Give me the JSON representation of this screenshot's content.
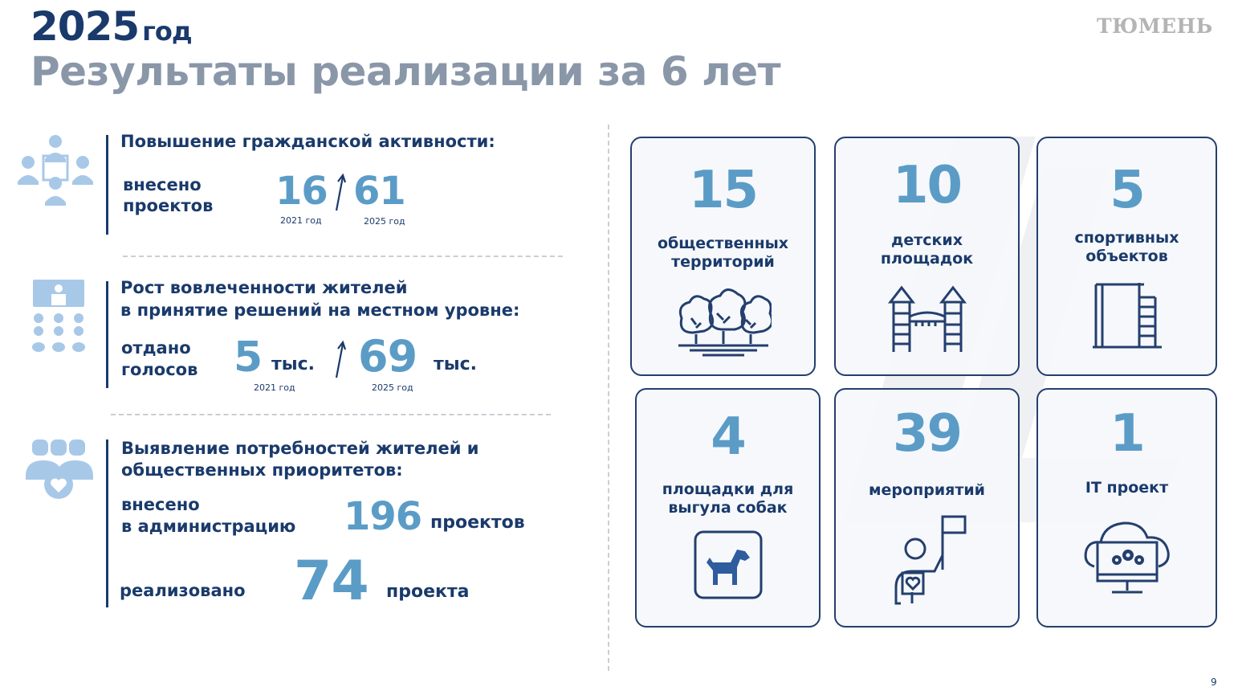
{
  "header": {
    "year": "2025",
    "year_suffix": "год",
    "title": "Результаты реализации за 6 лет",
    "brand": "ТЮМЕНЬ"
  },
  "section1": {
    "heading": "Повышение гражданской активности:",
    "label_line1": "внесено",
    "label_line2": "проектов",
    "value_2021": "16",
    "caption_2021": "2021 год",
    "value_2025": "61",
    "caption_2025": "2025 год",
    "icon": "people-meeting-icon"
  },
  "section2": {
    "heading_line1": "Рост вовлеченности  жителей",
    "heading_line2": "в принятие решений на местном уровне:",
    "label_line1": "отдано",
    "label_line2": "голосов",
    "value_2021": "5",
    "unit_2021": "тыс.",
    "caption_2021": "2021 год",
    "value_2025": "69",
    "unit_2025": "тыс.",
    "caption_2025": "2025 год",
    "icon": "audience-presentation-icon"
  },
  "section3": {
    "heading_line1": "Выявление потребностей жителей и",
    "heading_line2": "общественных приоритетов:",
    "label_a_line1": "внесено",
    "label_a_line2": "в администрацию",
    "value_a": "196",
    "unit_a": "проектов",
    "label_b": "реализовано",
    "value_b": "74",
    "unit_b": "проекта",
    "icon": "community-heart-icon"
  },
  "cards": [
    {
      "value": "15",
      "label_line1": "общественных",
      "label_line2": "территорий",
      "icon": "trees-icon"
    },
    {
      "value": "10",
      "label_line1": "детских",
      "label_line2": "площадок",
      "icon": "playground-icon"
    },
    {
      "value": "5",
      "label_line1": "спортивных",
      "label_line2": "объектов",
      "icon": "sports-bars-icon"
    },
    {
      "value": "4",
      "label_line1": "площадки для",
      "label_line2": "выгула собак",
      "icon": "dog-icon"
    },
    {
      "value": "39",
      "label_line1": "мероприятий",
      "label_line2": "",
      "icon": "volunteer-flag-icon"
    },
    {
      "value": "1",
      "label_line1": "IT проект",
      "label_line2": "",
      "icon": "cloud-computer-icon"
    }
  ],
  "footer": {
    "page_number": "9"
  },
  "colors": {
    "navy": "#1a3a6b",
    "accent": "#5b9cc7",
    "gray_title": "#8a97a9"
  }
}
